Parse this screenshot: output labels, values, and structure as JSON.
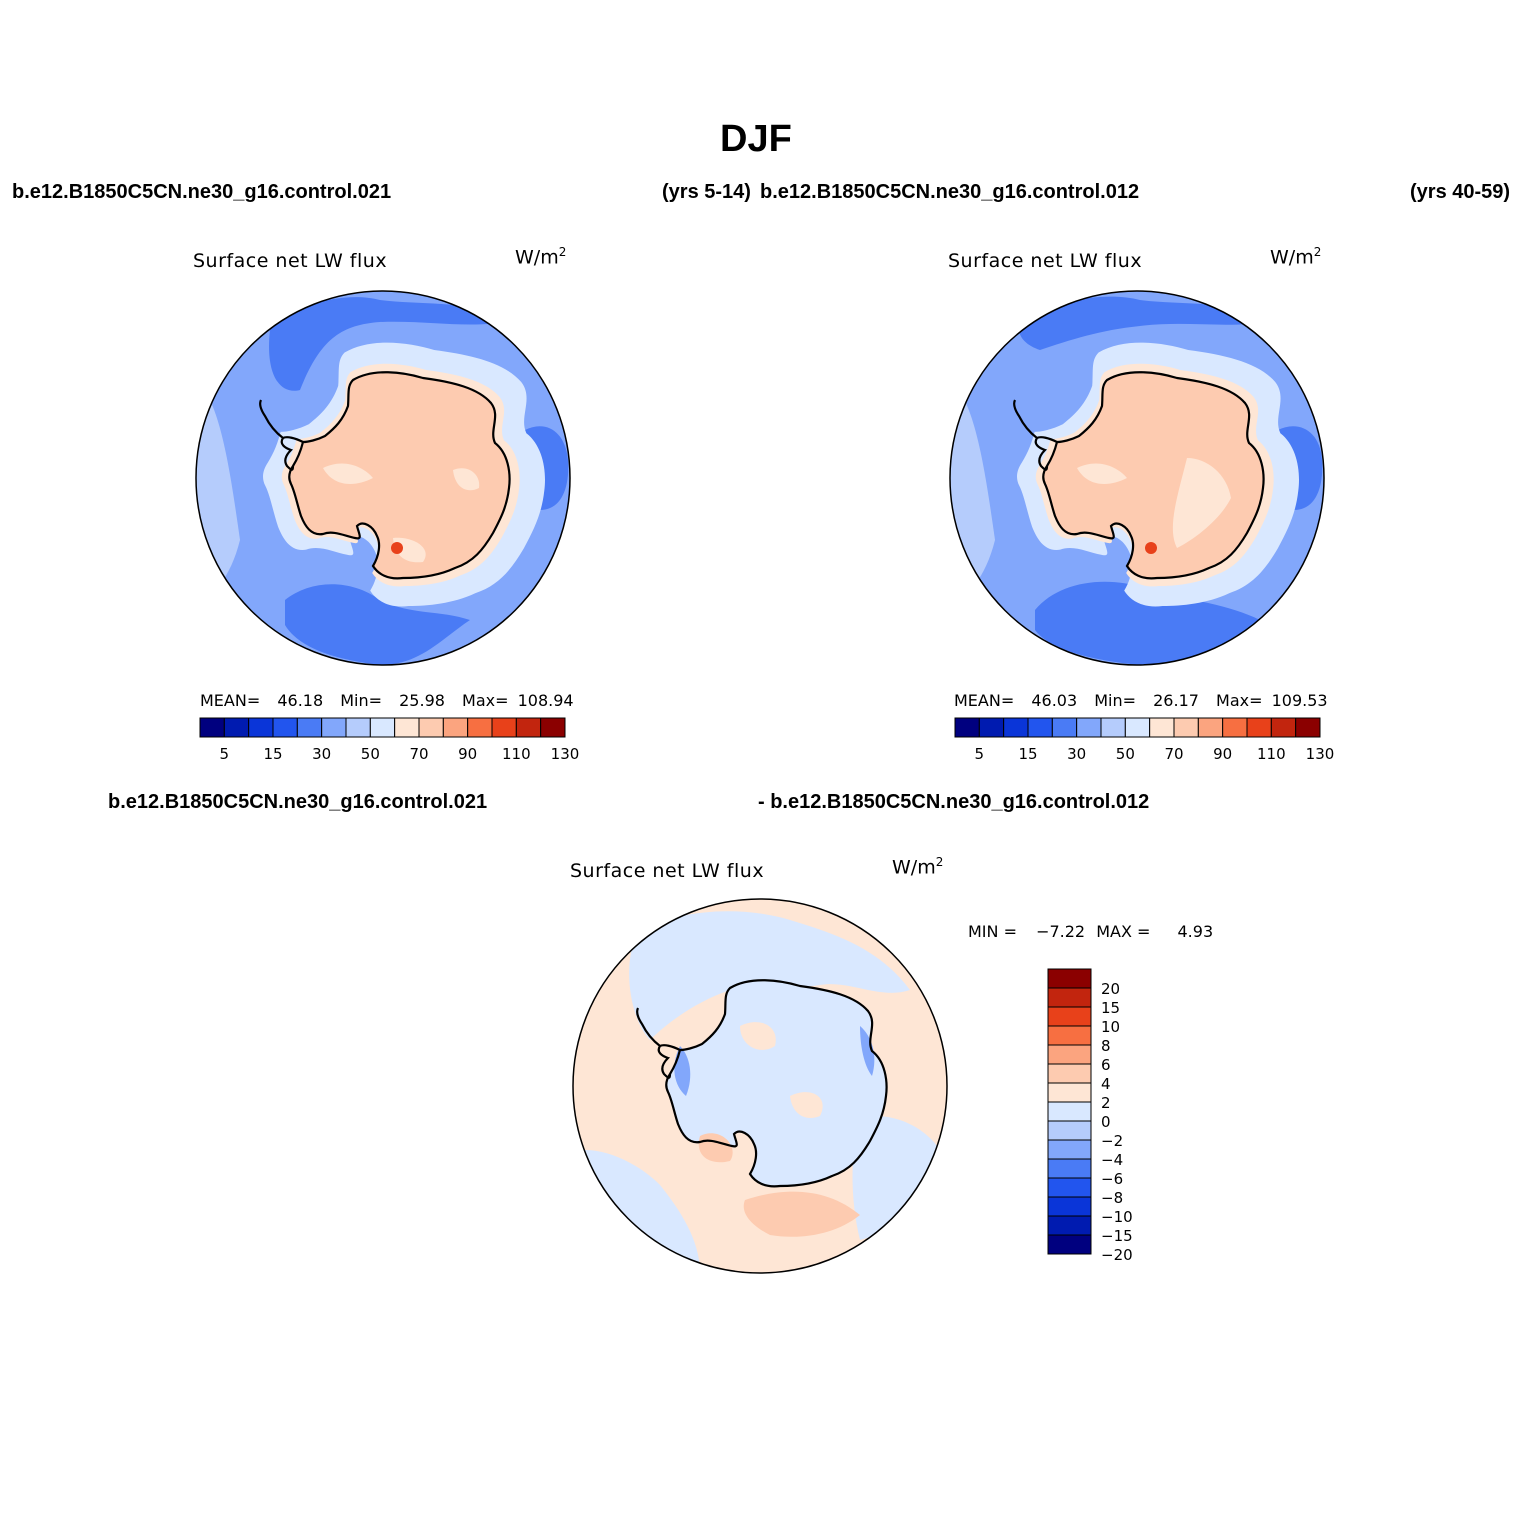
{
  "figure": {
    "title": "DJF",
    "left_case": "b.e12.B1850C5CN.ne30_g16.control.021",
    "left_years": "(yrs 5-14)",
    "right_case": "b.e12.B1850C5CN.ne30_g16.control.012",
    "right_years": "(yrs 40-59)",
    "diff_case_a": "b.e12.B1850C5CN.ne30_g16.control.021",
    "diff_case_b": "- b.e12.B1850C5CN.ne30_g16.control.012"
  },
  "panels": [
    {
      "id": "left",
      "variable": "Surface net LW flux",
      "units_base": "W/m",
      "units_exp": "2",
      "mean_label": "MEAN=",
      "mean": "46.18",
      "min_label": "Min=",
      "min": "25.98",
      "max_label": "Max=",
      "max": "108.94"
    },
    {
      "id": "right",
      "variable": "Surface net LW flux",
      "units_base": "W/m",
      "units_exp": "2",
      "mean_label": "MEAN=",
      "mean": "46.03",
      "min_label": "Min=",
      "min": "26.17",
      "max_label": "Max=",
      "max": "109.53"
    }
  ],
  "diff_panel": {
    "variable": "Surface net LW flux",
    "units_base": "W/m",
    "units_exp": "2",
    "min_label": "MIN =",
    "min": "−7.22",
    "max_label": "MAX =",
    "max": "4.93"
  },
  "colorbar_main": {
    "colors": [
      "#00007f",
      "#001bb0",
      "#0a35d8",
      "#2255ee",
      "#4a7bf5",
      "#82a7fb",
      "#b5ccfc",
      "#d9e8ff",
      "#fee6d5",
      "#fdcbb0",
      "#fba47f",
      "#f76f41",
      "#e8411a",
      "#c2250e",
      "#8b0000"
    ],
    "tick_labels": [
      "5",
      "15",
      "30",
      "50",
      "70",
      "90",
      "110",
      "130"
    ]
  },
  "colorbar_diff": {
    "colors": [
      "#8b0000",
      "#c2250e",
      "#e8411a",
      "#f76f41",
      "#fba47f",
      "#fdcbb0",
      "#fee6d5",
      "#d9e8ff",
      "#b5ccfc",
      "#82a7fb",
      "#4a7bf5",
      "#2255ee",
      "#0a35d8",
      "#001bb0",
      "#00007f"
    ],
    "tick_labels": [
      "20",
      "15",
      "10",
      "8",
      "6",
      "4",
      "2",
      "0",
      "−2",
      "−4",
      "−6",
      "−8",
      "−10",
      "−15",
      "−20"
    ]
  },
  "map_colors": {
    "ocean_outer": "#82a7fb",
    "ocean_dark": "#4a7bf5",
    "ocean_light": "#b5ccfc",
    "coast_halo": "#d9e8ff",
    "ice_low": "#fee6d5",
    "ice_high": "#fdcbb0",
    "hot": "#e8411a",
    "diff_pos": "#fee6d5",
    "diff_pos2": "#fdcbb0",
    "diff_neg": "#d9e8ff",
    "diff_neg2": "#b5ccfc",
    "diff_neg3": "#82a7fb"
  }
}
